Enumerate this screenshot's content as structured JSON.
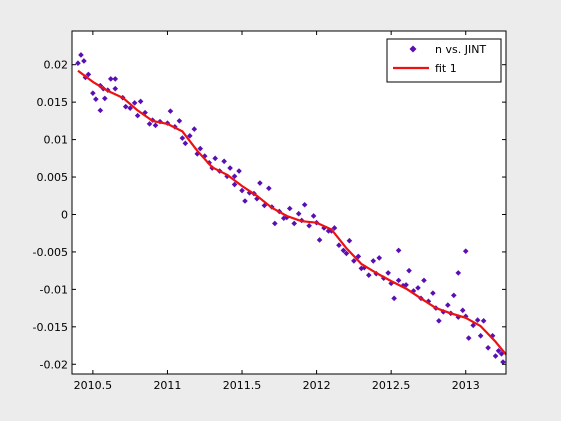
{
  "figure_background": "#ececec",
  "chart_data": {
    "type": "scatter",
    "xlim": [
      2010.36,
      2013.27
    ],
    "ylim": [
      -0.0213,
      0.0245
    ],
    "x_ticks": [
      2010.5,
      2011,
      2011.5,
      2012,
      2012.5,
      2013
    ],
    "x_tick_labels": [
      "2010.5",
      "2011",
      "2011.5",
      "2012",
      "2012.5",
      "2013"
    ],
    "y_ticks": [
      0.02,
      0.015,
      0.01,
      0.005,
      0,
      -0.005,
      -0.01,
      -0.015,
      -0.02
    ],
    "y_tick_labels": [
      "0.02",
      "0.015",
      "0.01",
      "0.005",
      "0",
      "-0.005",
      "-0.01",
      "-0.015",
      "-0.02"
    ],
    "grid": false,
    "legend_position": "top-right",
    "series": [
      {
        "name": "n vs. JINT",
        "kind": "scatter",
        "color": "#5a0fb4",
        "x": [
          2010.4,
          2010.45,
          2010.5,
          2010.55,
          2010.6,
          2010.65,
          2010.7,
          2010.75,
          2010.8,
          2010.85,
          2010.9,
          2010.95,
          2011.0,
          2011.05,
          2011.1,
          2011.15,
          2011.2,
          2011.25,
          2011.3,
          2011.35,
          2011.4,
          2011.45,
          2011.5,
          2011.55,
          2011.6,
          2011.65,
          2011.7,
          2011.75,
          2011.8,
          2011.85,
          2011.9,
          2011.95,
          2012.0,
          2012.05,
          2012.1,
          2012.15,
          2012.2,
          2012.25,
          2012.3,
          2012.35,
          2012.4,
          2012.45,
          2012.5,
          2012.55,
          2012.6,
          2012.65,
          2012.7,
          2012.75,
          2012.8,
          2012.85,
          2012.9,
          2012.95,
          2013.0,
          2013.05,
          2013.1,
          2013.15,
          2013.2,
          2013.25,
          2010.42,
          2010.47,
          2010.52,
          2010.57,
          2010.62,
          2010.72,
          2010.82,
          2010.92,
          2011.02,
          2011.12,
          2011.22,
          2011.32,
          2011.42,
          2011.52,
          2011.62,
          2011.72,
          2011.82,
          2011.92,
          2012.02,
          2012.12,
          2012.22,
          2012.32,
          2012.42,
          2012.52,
          2012.62,
          2012.72,
          2012.82,
          2012.92,
          2013.02,
          2013.12,
          2013.22,
          2013.0,
          2012.95,
          2012.55,
          2011.45,
          2010.55,
          2010.44,
          2010.58,
          2010.65,
          2010.78,
          2010.88,
          2011.08,
          2011.18,
          2011.28,
          2011.38,
          2011.48,
          2011.58,
          2011.68,
          2011.78,
          2011.88,
          2011.98,
          2012.08,
          2012.18,
          2012.28,
          2012.38,
          2012.48,
          2012.58,
          2012.68,
          2012.78,
          2012.88,
          2012.98,
          2013.08,
          2013.18,
          2013.24
        ],
        "y": [
          0.0202,
          0.0183,
          0.0162,
          0.0172,
          0.0166,
          0.0168,
          0.0156,
          0.0142,
          0.0132,
          0.0136,
          0.0126,
          0.0124,
          0.0122,
          0.0117,
          0.0102,
          0.0105,
          0.0081,
          0.0078,
          0.0062,
          0.0058,
          0.0051,
          0.004,
          0.0032,
          0.0029,
          0.0021,
          0.0012,
          0.001,
          0.0004,
          -0.0004,
          -0.0012,
          -0.0008,
          -0.0015,
          -0.0011,
          -0.0018,
          -0.0022,
          -0.0041,
          -0.0052,
          -0.0062,
          -0.0072,
          -0.0081,
          -0.0079,
          -0.0085,
          -0.0092,
          -0.0088,
          -0.0094,
          -0.0102,
          -0.0112,
          -0.0116,
          -0.0125,
          -0.013,
          -0.0132,
          -0.0137,
          -0.0136,
          -0.0148,
          -0.0162,
          -0.0178,
          -0.0189,
          -0.0197,
          0.0213,
          0.0187,
          0.0154,
          0.0168,
          0.0181,
          0.0144,
          0.0151,
          0.0119,
          0.0138,
          0.0095,
          0.0088,
          0.0075,
          0.0062,
          0.0018,
          0.0042,
          -0.0012,
          0.0008,
          0.0013,
          -0.0034,
          -0.0018,
          -0.0035,
          -0.0071,
          -0.0058,
          -0.0112,
          -0.0075,
          -0.0088,
          -0.0142,
          -0.0108,
          -0.0165,
          -0.0142,
          -0.0182,
          -0.0049,
          -0.0078,
          -0.0048,
          0.0051,
          0.0139,
          0.0205,
          0.0155,
          0.0181,
          0.0149,
          0.0121,
          0.0125,
          0.0114,
          0.0069,
          0.0071,
          0.0058,
          0.0028,
          0.0035,
          -0.0005,
          0.0001,
          -0.0002,
          -0.0022,
          -0.0048,
          -0.0056,
          -0.0062,
          -0.0078,
          -0.0095,
          -0.0098,
          -0.0105,
          -0.0121,
          -0.0128,
          -0.0141,
          -0.0162,
          -0.0186
        ]
      },
      {
        "name": "fit 1",
        "kind": "line",
        "color": "#ee1111",
        "x": [
          2010.4,
          2010.5,
          2010.6,
          2010.7,
          2010.8,
          2010.9,
          2011.0,
          2011.1,
          2011.2,
          2011.3,
          2011.4,
          2011.5,
          2011.6,
          2011.7,
          2011.8,
          2011.9,
          2012.0,
          2012.1,
          2012.2,
          2012.3,
          2012.4,
          2012.5,
          2012.6,
          2012.7,
          2012.8,
          2012.9,
          2013.0,
          2013.1,
          2013.2,
          2013.27
        ],
        "y": [
          0.0192,
          0.0177,
          0.0165,
          0.0156,
          0.0139,
          0.0125,
          0.0121,
          0.0111,
          0.0085,
          0.0063,
          0.0053,
          0.0038,
          0.0025,
          0.0009,
          -0.0002,
          -0.0009,
          -0.0011,
          -0.002,
          -0.0045,
          -0.0066,
          -0.0078,
          -0.0089,
          -0.0099,
          -0.0112,
          -0.0125,
          -0.0132,
          -0.0138,
          -0.0149,
          -0.017,
          -0.0187
        ]
      }
    ]
  }
}
